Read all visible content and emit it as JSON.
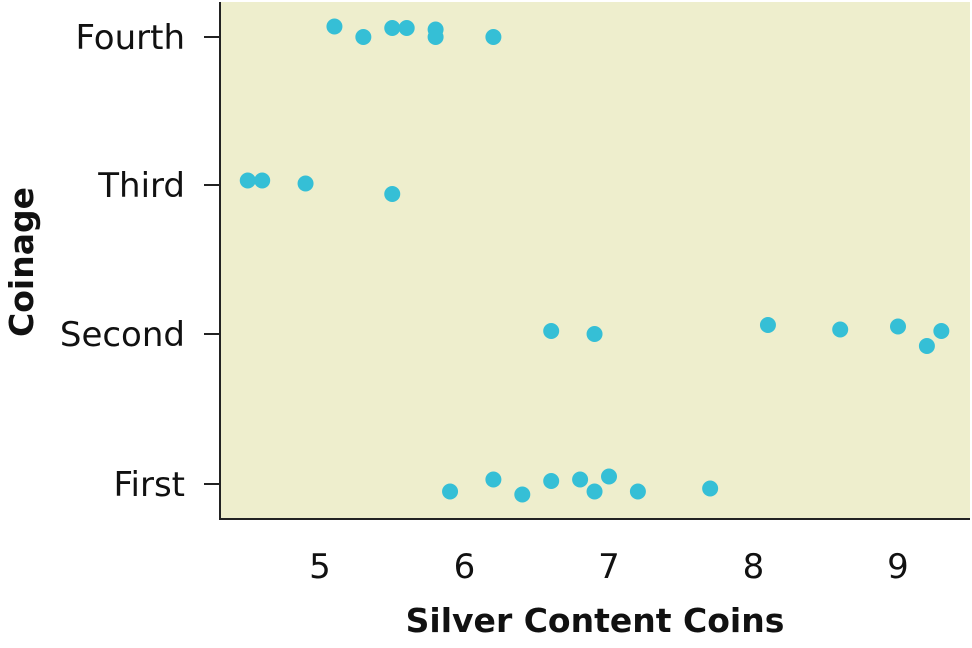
{
  "chart_data": {
    "type": "scatter",
    "title": "",
    "xlabel": "Silver Content Coins",
    "ylabel": "Coinage",
    "xlim": [
      4.35,
      9.55
    ],
    "x_ticks": [
      5,
      6,
      7,
      8,
      9
    ],
    "categories": [
      "First",
      "Second",
      "Third",
      "Fourth"
    ],
    "grid": false,
    "background_color": "#eeeecd",
    "point_color": "#35bfd6",
    "series": [
      {
        "category": "Fourth",
        "points": [
          {
            "x": 5.1,
            "jitter": 0.07
          },
          {
            "x": 5.3,
            "jitter": 0.0
          },
          {
            "x": 5.5,
            "jitter": 0.06
          },
          {
            "x": 5.6,
            "jitter": 0.06
          },
          {
            "x": 5.8,
            "jitter": 0.05
          },
          {
            "x": 5.8,
            "jitter": 0.0
          },
          {
            "x": 6.2,
            "jitter": 0.0
          }
        ]
      },
      {
        "category": "Third",
        "points": [
          {
            "x": 4.5,
            "jitter": 0.03
          },
          {
            "x": 4.6,
            "jitter": 0.03
          },
          {
            "x": 4.9,
            "jitter": 0.01
          },
          {
            "x": 5.5,
            "jitter": -0.06
          }
        ]
      },
      {
        "category": "Second",
        "points": [
          {
            "x": 6.6,
            "jitter": 0.02
          },
          {
            "x": 6.9,
            "jitter": 0.0
          },
          {
            "x": 8.1,
            "jitter": 0.06
          },
          {
            "x": 8.6,
            "jitter": 0.03
          },
          {
            "x": 9.0,
            "jitter": 0.05
          },
          {
            "x": 9.2,
            "jitter": -0.08
          },
          {
            "x": 9.3,
            "jitter": 0.02
          }
        ]
      },
      {
        "category": "First",
        "points": [
          {
            "x": 5.9,
            "jitter": -0.05
          },
          {
            "x": 6.2,
            "jitter": 0.03
          },
          {
            "x": 6.4,
            "jitter": -0.07
          },
          {
            "x": 6.6,
            "jitter": 0.02
          },
          {
            "x": 6.8,
            "jitter": 0.03
          },
          {
            "x": 6.9,
            "jitter": -0.05
          },
          {
            "x": 7.0,
            "jitter": 0.05
          },
          {
            "x": 7.2,
            "jitter": -0.05
          },
          {
            "x": 7.7,
            "jitter": -0.03
          }
        ]
      }
    ]
  }
}
